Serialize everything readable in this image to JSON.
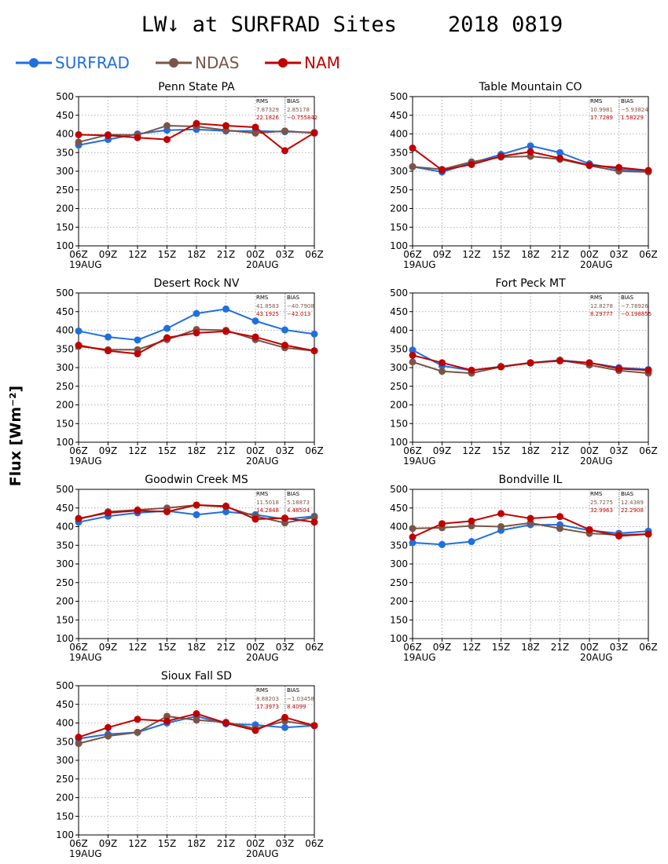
{
  "figure": {
    "title": "LW↓ at SURFRAD Sites    2018 0819",
    "ylabel": "Flux [Wm⁻²]"
  },
  "legend": [
    {
      "name": "SURFRAD",
      "color": "#1f6fe0"
    },
    {
      "name": "NDAS",
      "color": "#7a5547"
    },
    {
      "name": "NAM",
      "color": "#c00000"
    }
  ],
  "chart_data": [
    {
      "type": "line",
      "title": "Penn State PA",
      "categories": [
        "06Z",
        "09Z",
        "12Z",
        "15Z",
        "18Z",
        "21Z",
        "00Z",
        "03Z",
        "06Z"
      ],
      "date_labels": [
        "19AUG",
        "20AUG"
      ],
      "ylim": [
        100,
        500
      ],
      "yticks": [
        100,
        150,
        200,
        250,
        300,
        350,
        400,
        450,
        500
      ],
      "grid": true,
      "series": [
        {
          "name": "SURFRAD",
          "values": [
            370,
            385,
            400,
            410,
            412,
            408,
            408,
            406,
            404
          ]
        },
        {
          "name": "NDAS",
          "values": [
            378,
            398,
            397,
            422,
            420,
            410,
            402,
            408,
            402
          ]
        },
        {
          "name": "NAM",
          "values": [
            398,
            396,
            390,
            385,
            428,
            422,
            418,
            355,
            403
          ]
        }
      ],
      "stats": {
        "header": [
          "RMS",
          "BIAS"
        ],
        "rows": [
          [
            "7.87329",
            "2.85178"
          ],
          [
            "22.1826",
            "−0.755842"
          ]
        ]
      }
    },
    {
      "type": "line",
      "title": "Table Mountain CO",
      "categories": [
        "06Z",
        "09Z",
        "12Z",
        "15Z",
        "18Z",
        "21Z",
        "00Z",
        "03Z",
        "06Z"
      ],
      "date_labels": [
        "19AUG",
        "20AUG"
      ],
      "ylim": [
        100,
        500
      ],
      "yticks": [
        100,
        150,
        200,
        250,
        300,
        350,
        400,
        450,
        500
      ],
      "grid": true,
      "series": [
        {
          "name": "SURFRAD",
          "values": [
            312,
            298,
            322,
            345,
            368,
            350,
            320,
            305,
            300
          ]
        },
        {
          "name": "NDAS",
          "values": [
            312,
            305,
            325,
            338,
            340,
            332,
            315,
            300,
            298
          ]
        },
        {
          "name": "NAM",
          "values": [
            362,
            303,
            318,
            340,
            352,
            335,
            316,
            310,
            302
          ]
        }
      ],
      "stats": {
        "header": [
          "RMS",
          "BIAS"
        ],
        "rows": [
          [
            "10.9981",
            "−5.93824"
          ],
          [
            "17.7289",
            "1.58229"
          ]
        ]
      }
    },
    {
      "type": "line",
      "title": "Desert Rock NV",
      "categories": [
        "06Z",
        "09Z",
        "12Z",
        "15Z",
        "18Z",
        "21Z",
        "00Z",
        "03Z",
        "06Z"
      ],
      "date_labels": [
        "19AUG",
        "20AUG"
      ],
      "ylim": [
        100,
        500
      ],
      "yticks": [
        100,
        150,
        200,
        250,
        300,
        350,
        400,
        450,
        500
      ],
      "grid": true,
      "series": [
        {
          "name": "SURFRAD",
          "values": [
            398,
            382,
            374,
            405,
            445,
            457,
            425,
            401,
            390
          ]
        },
        {
          "name": "NDAS",
          "values": [
            357,
            348,
            348,
            375,
            402,
            400,
            375,
            353,
            345
          ]
        },
        {
          "name": "NAM",
          "values": [
            360,
            345,
            337,
            380,
            393,
            397,
            382,
            360,
            345
          ]
        }
      ],
      "stats": {
        "header": [
          "RMS",
          "BIAS"
        ],
        "rows": [
          [
            "41.8583",
            "−40.7908"
          ],
          [
            "43.1925",
            "−42.013"
          ]
        ]
      }
    },
    {
      "type": "line",
      "title": "Fort Peck MT",
      "categories": [
        "06Z",
        "09Z",
        "12Z",
        "15Z",
        "18Z",
        "21Z",
        "00Z",
        "03Z",
        "06Z"
      ],
      "date_labels": [
        "19AUG",
        "20AUG"
      ],
      "ylim": [
        100,
        500
      ],
      "yticks": [
        100,
        150,
        200,
        250,
        300,
        350,
        400,
        450,
        500
      ],
      "grid": true,
      "series": [
        {
          "name": "SURFRAD",
          "values": [
            347,
            305,
            292,
            303,
            313,
            320,
            313,
            300,
            295
          ]
        },
        {
          "name": "NDAS",
          "values": [
            315,
            290,
            285,
            302,
            312,
            320,
            307,
            292,
            285
          ]
        },
        {
          "name": "NAM",
          "values": [
            333,
            313,
            293,
            302,
            313,
            318,
            313,
            297,
            293
          ]
        }
      ],
      "stats": {
        "header": [
          "RMS",
          "BIAS"
        ],
        "rows": [
          [
            "12.8278",
            "−7.78926"
          ],
          [
            "8.29777",
            "−0.198855"
          ]
        ]
      }
    },
    {
      "type": "line",
      "title": "Goodwin Creek MS",
      "categories": [
        "06Z",
        "09Z",
        "12Z",
        "15Z",
        "18Z",
        "21Z",
        "00Z",
        "03Z",
        "06Z"
      ],
      "date_labels": [
        "19AUG",
        "20AUG"
      ],
      "ylim": [
        100,
        500
      ],
      "yticks": [
        100,
        150,
        200,
        250,
        300,
        350,
        400,
        450,
        500
      ],
      "grid": true,
      "series": [
        {
          "name": "SURFRAD",
          "values": [
            412,
            428,
            437,
            442,
            432,
            440,
            432,
            420,
            428
          ]
        },
        {
          "name": "NDAS",
          "values": [
            420,
            440,
            445,
            450,
            458,
            453,
            428,
            410,
            425
          ]
        },
        {
          "name": "NAM",
          "values": [
            422,
            437,
            443,
            440,
            458,
            455,
            420,
            423,
            412
          ]
        }
      ],
      "stats": {
        "header": [
          "RMS",
          "BIAS"
        ],
        "rows": [
          [
            "11.5018",
            "5.18873"
          ],
          [
            "14.2848",
            "4.48504"
          ]
        ]
      }
    },
    {
      "type": "line",
      "title": "Bondville IL",
      "categories": [
        "06Z",
        "09Z",
        "12Z",
        "15Z",
        "18Z",
        "21Z",
        "00Z",
        "03Z",
        "06Z"
      ],
      "date_labels": [
        "19AUG",
        "20AUG"
      ],
      "ylim": [
        100,
        500
      ],
      "yticks": [
        100,
        150,
        200,
        250,
        300,
        350,
        400,
        450,
        500
      ],
      "grid": true,
      "series": [
        {
          "name": "SURFRAD",
          "values": [
            357,
            352,
            360,
            390,
            405,
            405,
            390,
            382,
            388
          ]
        },
        {
          "name": "NDAS",
          "values": [
            395,
            397,
            402,
            400,
            410,
            395,
            382,
            378,
            380
          ]
        },
        {
          "name": "NAM",
          "values": [
            372,
            408,
            415,
            435,
            422,
            427,
            392,
            375,
            380
          ]
        }
      ],
      "stats": {
        "header": [
          "RMS",
          "BIAS"
        ],
        "rows": [
          [
            "25.7275",
            "12.4389"
          ],
          [
            "32.9963",
            "22.2908"
          ]
        ]
      }
    },
    {
      "type": "line",
      "title": "Sioux Fall SD",
      "categories": [
        "06Z",
        "09Z",
        "12Z",
        "15Z",
        "18Z",
        "21Z",
        "00Z",
        "03Z",
        "06Z"
      ],
      "date_labels": [
        "19AUG",
        "20AUG"
      ],
      "ylim": [
        100,
        500
      ],
      "yticks": [
        100,
        150,
        200,
        250,
        300,
        350,
        400,
        450,
        500
      ],
      "grid": true,
      "series": [
        {
          "name": "SURFRAD",
          "values": [
            358,
            370,
            375,
            400,
            418,
            398,
            395,
            388,
            393
          ]
        },
        {
          "name": "NDAS",
          "values": [
            345,
            365,
            375,
            418,
            408,
            402,
            385,
            405,
            393
          ]
        },
        {
          "name": "NAM",
          "values": [
            362,
            388,
            410,
            405,
            425,
            400,
            380,
            415,
            393
          ]
        }
      ],
      "stats": {
        "header": [
          "RMS",
          "BIAS"
        ],
        "rows": [
          [
            "8.88203",
            "−1.03458"
          ],
          [
            "17.3973",
            "8.4099"
          ]
        ]
      }
    }
  ]
}
